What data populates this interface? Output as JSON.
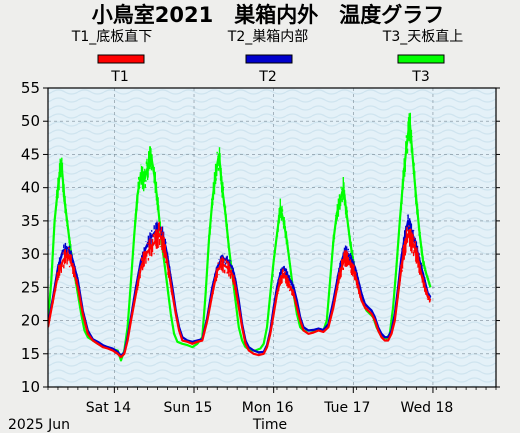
{
  "chart_data": {
    "type": "line",
    "title": "小鳥室2021　巣箱内外　温度グラフ",
    "legend_placement": "top",
    "series": [
      {
        "name": "T1",
        "legend_label": "T1_底板直下",
        "color": "#ff0000",
        "points": [
          [
            0,
            19
          ],
          [
            3,
            23
          ],
          [
            6,
            27
          ],
          [
            9,
            29
          ],
          [
            12,
            30
          ],
          [
            15,
            28
          ],
          [
            18,
            25
          ],
          [
            21,
            21
          ],
          [
            24,
            18
          ],
          [
            27,
            17
          ],
          [
            30,
            16.5
          ],
          [
            33,
            16
          ],
          [
            36,
            15.8
          ],
          [
            39,
            15.5
          ],
          [
            42,
            15
          ],
          [
            44,
            14.5
          ],
          [
            46,
            15
          ],
          [
            48,
            17
          ],
          [
            50,
            20
          ],
          [
            53,
            24
          ],
          [
            56,
            28
          ],
          [
            59,
            30
          ],
          [
            62,
            31
          ],
          [
            65,
            32
          ],
          [
            67,
            33
          ],
          [
            69,
            32
          ],
          [
            71,
            30
          ],
          [
            73,
            27
          ],
          [
            75,
            24
          ],
          [
            77,
            21
          ],
          [
            79,
            18.5
          ],
          [
            81,
            17
          ],
          [
            84,
            16.8
          ],
          [
            87,
            16.5
          ],
          [
            90,
            16.8
          ],
          [
            93,
            17
          ],
          [
            96,
            20
          ],
          [
            99,
            24
          ],
          [
            102,
            27.5
          ],
          [
            105,
            28.5
          ],
          [
            108,
            28
          ],
          [
            111,
            27
          ],
          [
            113,
            25
          ],
          [
            115,
            22
          ],
          [
            117,
            19
          ],
          [
            119,
            16.5
          ],
          [
            121,
            15.5
          ],
          [
            124,
            15
          ],
          [
            127,
            14.8
          ],
          [
            130,
            15
          ],
          [
            132,
            16
          ],
          [
            134,
            18
          ],
          [
            136,
            21
          ],
          [
            138,
            24
          ],
          [
            140,
            26
          ],
          [
            142,
            27
          ],
          [
            144,
            26
          ],
          [
            146,
            25
          ],
          [
            148,
            24
          ],
          [
            150,
            22
          ],
          [
            152,
            20
          ],
          [
            154,
            18.5
          ],
          [
            157,
            18
          ],
          [
            160,
            18.2
          ],
          [
            163,
            18.5
          ],
          [
            166,
            18.3
          ],
          [
            169,
            19
          ],
          [
            172,
            22
          ],
          [
            175,
            26
          ],
          [
            177,
            28
          ],
          [
            179,
            29.5
          ],
          [
            181,
            29
          ],
          [
            183,
            28
          ],
          [
            185,
            27
          ],
          [
            187,
            25
          ],
          [
            189,
            23
          ],
          [
            191,
            22
          ],
          [
            193,
            21.5
          ],
          [
            195,
            21
          ],
          [
            197,
            20
          ],
          [
            199,
            18.5
          ],
          [
            201,
            17.5
          ],
          [
            203,
            17
          ],
          [
            205,
            17
          ],
          [
            207,
            18
          ],
          [
            209,
            20
          ],
          [
            211,
            24
          ],
          [
            213,
            28
          ],
          [
            215,
            31
          ],
          [
            217,
            33
          ],
          [
            219,
            32
          ],
          [
            221,
            31
          ],
          [
            223,
            29
          ],
          [
            225,
            27
          ],
          [
            227,
            25
          ],
          [
            229,
            23.5
          ],
          [
            230.5,
            23
          ]
        ]
      },
      {
        "name": "T2",
        "legend_label": "T2_巣箱内部",
        "color": "#0000cc",
        "points": [
          [
            0,
            19.5
          ],
          [
            3,
            23.5
          ],
          [
            6,
            28
          ],
          [
            9,
            30.5
          ],
          [
            12,
            31
          ],
          [
            15,
            29
          ],
          [
            18,
            26
          ],
          [
            21,
            21.5
          ],
          [
            24,
            18.5
          ],
          [
            27,
            17.2
          ],
          [
            30,
            16.8
          ],
          [
            33,
            16.3
          ],
          [
            36,
            16
          ],
          [
            39,
            15.8
          ],
          [
            42,
            15.3
          ],
          [
            44,
            14.7
          ],
          [
            46,
            15.2
          ],
          [
            48,
            17.5
          ],
          [
            50,
            20.5
          ],
          [
            53,
            25
          ],
          [
            56,
            29
          ],
          [
            59,
            31
          ],
          [
            62,
            32.5
          ],
          [
            65,
            33.5
          ],
          [
            67,
            34
          ],
          [
            69,
            33
          ],
          [
            71,
            31
          ],
          [
            73,
            28
          ],
          [
            75,
            25
          ],
          [
            77,
            21.5
          ],
          [
            79,
            19
          ],
          [
            81,
            17.5
          ],
          [
            84,
            17
          ],
          [
            87,
            16.8
          ],
          [
            90,
            17
          ],
          [
            93,
            17.2
          ],
          [
            96,
            20.5
          ],
          [
            99,
            25
          ],
          [
            102,
            28
          ],
          [
            105,
            29.5
          ],
          [
            108,
            29
          ],
          [
            111,
            28
          ],
          [
            113,
            26
          ],
          [
            115,
            23
          ],
          [
            117,
            19.5
          ],
          [
            119,
            17
          ],
          [
            121,
            16
          ],
          [
            124,
            15.5
          ],
          [
            127,
            15.2
          ],
          [
            130,
            15.3
          ],
          [
            132,
            16.3
          ],
          [
            134,
            18.5
          ],
          [
            136,
            22
          ],
          [
            138,
            25
          ],
          [
            140,
            27
          ],
          [
            142,
            28
          ],
          [
            144,
            27
          ],
          [
            146,
            26
          ],
          [
            148,
            25
          ],
          [
            150,
            23
          ],
          [
            152,
            20.5
          ],
          [
            154,
            19
          ],
          [
            157,
            18.5
          ],
          [
            160,
            18.6
          ],
          [
            163,
            18.8
          ],
          [
            166,
            18.6
          ],
          [
            169,
            19.5
          ],
          [
            172,
            23
          ],
          [
            175,
            27
          ],
          [
            177,
            29
          ],
          [
            179,
            30.5
          ],
          [
            181,
            30
          ],
          [
            183,
            29
          ],
          [
            185,
            28
          ],
          [
            187,
            26
          ],
          [
            189,
            24
          ],
          [
            191,
            22.5
          ],
          [
            193,
            22
          ],
          [
            195,
            21.5
          ],
          [
            197,
            20.5
          ],
          [
            199,
            19
          ],
          [
            201,
            18
          ],
          [
            203,
            17.5
          ],
          [
            205,
            17.5
          ],
          [
            207,
            18.5
          ],
          [
            209,
            21
          ],
          [
            211,
            25
          ],
          [
            213,
            29.5
          ],
          [
            215,
            32.5
          ],
          [
            217,
            35
          ],
          [
            219,
            33.5
          ],
          [
            221,
            32
          ],
          [
            223,
            30
          ],
          [
            225,
            28
          ],
          [
            227,
            26
          ],
          [
            229,
            24
          ],
          [
            230.5,
            23.5
          ]
        ]
      },
      {
        "name": "T3",
        "legend_label": "T3_天板直上",
        "color": "#00ff00",
        "points": [
          [
            0,
            20
          ],
          [
            2,
            26
          ],
          [
            4,
            35
          ],
          [
            6,
            40
          ],
          [
            8,
            44
          ],
          [
            10,
            38
          ],
          [
            12,
            34
          ],
          [
            14,
            30
          ],
          [
            16,
            27
          ],
          [
            18,
            24
          ],
          [
            20,
            21
          ],
          [
            22,
            18.5
          ],
          [
            24,
            17.5
          ],
          [
            27,
            17
          ],
          [
            30,
            16.5
          ],
          [
            33,
            16.2
          ],
          [
            36,
            16
          ],
          [
            39,
            15.7
          ],
          [
            42,
            15.5
          ],
          [
            44,
            14
          ],
          [
            46,
            15.5
          ],
          [
            48,
            19
          ],
          [
            50,
            26
          ],
          [
            52,
            33
          ],
          [
            54,
            39
          ],
          [
            56,
            42
          ],
          [
            58,
            41
          ],
          [
            60,
            43
          ],
          [
            62,
            45
          ],
          [
            64,
            42
          ],
          [
            66,
            38
          ],
          [
            68,
            33
          ],
          [
            70,
            29
          ],
          [
            72,
            25
          ],
          [
            74,
            21
          ],
          [
            76,
            18
          ],
          [
            78,
            16.8
          ],
          [
            81,
            16.5
          ],
          [
            84,
            16.3
          ],
          [
            87,
            16
          ],
          [
            90,
            16.5
          ],
          [
            93,
            17.5
          ],
          [
            95,
            24
          ],
          [
            97,
            32
          ],
          [
            99,
            38
          ],
          [
            101,
            42
          ],
          [
            103,
            45
          ],
          [
            105,
            40
          ],
          [
            107,
            36
          ],
          [
            109,
            31
          ],
          [
            111,
            27
          ],
          [
            113,
            23
          ],
          [
            115,
            19
          ],
          [
            117,
            17
          ],
          [
            119,
            16
          ],
          [
            122,
            15.5
          ],
          [
            125,
            15.5
          ],
          [
            128,
            15.8
          ],
          [
            130,
            16.5
          ],
          [
            132,
            19
          ],
          [
            134,
            24
          ],
          [
            136,
            29
          ],
          [
            138,
            33
          ],
          [
            140,
            37
          ],
          [
            142,
            35
          ],
          [
            144,
            32
          ],
          [
            146,
            28
          ],
          [
            148,
            24
          ],
          [
            150,
            21
          ],
          [
            152,
            19
          ],
          [
            154,
            18.5
          ],
          [
            157,
            18.5
          ],
          [
            160,
            18.5
          ],
          [
            163,
            18.7
          ],
          [
            166,
            18.5
          ],
          [
            168,
            20
          ],
          [
            170,
            26
          ],
          [
            172,
            32
          ],
          [
            174,
            36
          ],
          [
            176,
            38
          ],
          [
            178,
            40
          ],
          [
            180,
            36
          ],
          [
            182,
            32
          ],
          [
            184,
            29
          ],
          [
            186,
            26
          ],
          [
            188,
            24
          ],
          [
            190,
            22.5
          ],
          [
            192,
            21.5
          ],
          [
            194,
            21
          ],
          [
            196,
            20.5
          ],
          [
            198,
            19
          ],
          [
            200,
            18
          ],
          [
            202,
            17.5
          ],
          [
            204,
            17.3
          ],
          [
            206,
            18
          ],
          [
            208,
            22
          ],
          [
            210,
            28
          ],
          [
            212,
            35
          ],
          [
            214,
            41
          ],
          [
            216,
            46
          ],
          [
            218,
            50
          ],
          [
            220,
            44
          ],
          [
            222,
            38
          ],
          [
            224,
            33
          ],
          [
            226,
            29
          ],
          [
            228,
            27
          ],
          [
            230.5,
            25
          ]
        ]
      }
    ],
    "x_axis": {
      "label": "Time",
      "date_label": "2025 Jun",
      "ticks": [
        {
          "label": "Sat 14",
          "pos": 40
        },
        {
          "label": "Sun 15",
          "pos": 88
        },
        {
          "label": "Mon 16",
          "pos": 136
        },
        {
          "label": "Tue 17",
          "pos": 184
        },
        {
          "label": "Wed 18",
          "pos": 232
        }
      ],
      "min": 0,
      "max": 270,
      "minor_step": 6
    },
    "y_axis": {
      "min": 10,
      "max": 55,
      "step": 5,
      "ticks": [
        10,
        15,
        20,
        25,
        30,
        35,
        40,
        45,
        50,
        55
      ]
    },
    "grid": true
  }
}
